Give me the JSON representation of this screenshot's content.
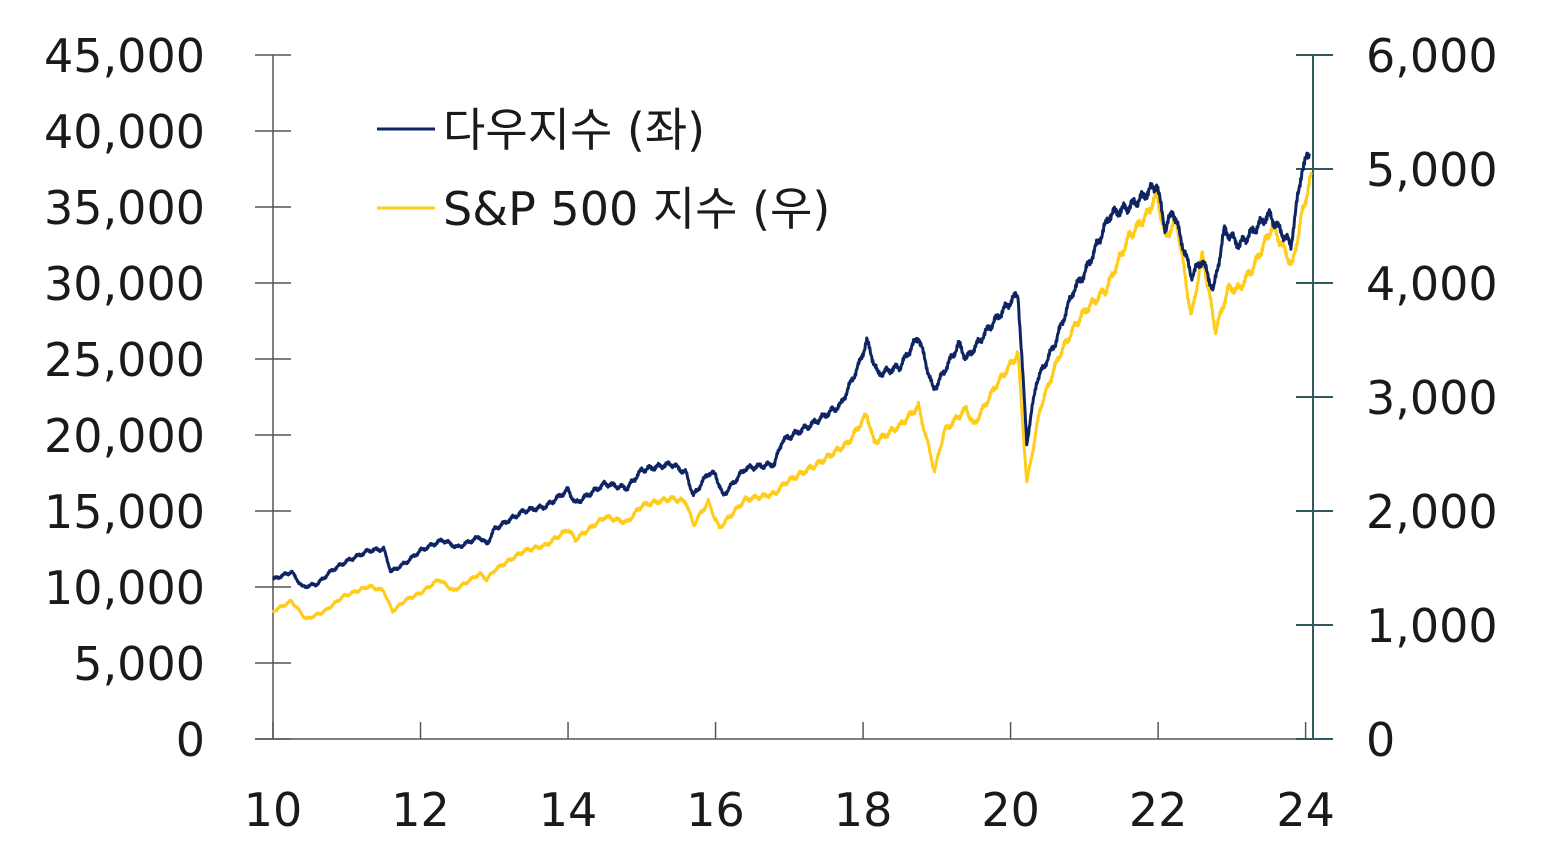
{
  "chart_data": {
    "type": "line",
    "title": "",
    "xlabel": "",
    "x_ticks": [
      "10",
      "12",
      "14",
      "16",
      "18",
      "20",
      "22",
      "24"
    ],
    "x_range": [
      2010,
      2024.1
    ],
    "y_left": {
      "ylim": [
        0,
        45000
      ],
      "ticks": [
        "0",
        "5,000",
        "10,000",
        "15,000",
        "20,000",
        "25,000",
        "30,000",
        "35,000",
        "40,000",
        "45,000"
      ]
    },
    "y_right": {
      "ylim": [
        0,
        6000
      ],
      "ticks": [
        "0",
        "1,000",
        "2,000",
        "3,000",
        "4,000",
        "5,000",
        "6,000"
      ]
    },
    "legend_position": "top-left",
    "grid": false,
    "series": [
      {
        "name": "다우지수 (좌)",
        "axis": "left",
        "color": "#0f2563",
        "points": [
          [
            2010.0,
            10500
          ],
          [
            2010.25,
            11000
          ],
          [
            2010.4,
            10000
          ],
          [
            2010.6,
            10200
          ],
          [
            2010.8,
            11100
          ],
          [
            2011.0,
            11700
          ],
          [
            2011.3,
            12400
          ],
          [
            2011.5,
            12500
          ],
          [
            2011.6,
            11000
          ],
          [
            2011.8,
            11600
          ],
          [
            2012.0,
            12400
          ],
          [
            2012.3,
            13100
          ],
          [
            2012.5,
            12600
          ],
          [
            2012.8,
            13300
          ],
          [
            2012.9,
            12800
          ],
          [
            2013.0,
            13800
          ],
          [
            2013.4,
            15000
          ],
          [
            2013.7,
            15300
          ],
          [
            2014.0,
            16400
          ],
          [
            2014.1,
            15500
          ],
          [
            2014.5,
            16800
          ],
          [
            2014.8,
            16500
          ],
          [
            2015.0,
            17700
          ],
          [
            2015.4,
            18100
          ],
          [
            2015.6,
            17500
          ],
          [
            2015.7,
            16000
          ],
          [
            2015.9,
            17500
          ],
          [
            2016.0,
            17400
          ],
          [
            2016.1,
            16000
          ],
          [
            2016.4,
            17800
          ],
          [
            2016.8,
            18100
          ],
          [
            2016.9,
            19600
          ],
          [
            2017.3,
            20700
          ],
          [
            2017.7,
            22000
          ],
          [
            2017.95,
            24700
          ],
          [
            2018.05,
            26200
          ],
          [
            2018.2,
            24000
          ],
          [
            2018.5,
            24500
          ],
          [
            2018.75,
            26500
          ],
          [
            2018.95,
            23000
          ],
          [
            2019.0,
            23300
          ],
          [
            2019.3,
            26000
          ],
          [
            2019.4,
            25000
          ],
          [
            2019.7,
            27000
          ],
          [
            2019.95,
            28500
          ],
          [
            2020.1,
            29300
          ],
          [
            2020.22,
            19500
          ],
          [
            2020.35,
            23500
          ],
          [
            2020.6,
            26000
          ],
          [
            2020.85,
            29500
          ],
          [
            2021.0,
            30600
          ],
          [
            2021.35,
            34500
          ],
          [
            2021.6,
            35000
          ],
          [
            2021.8,
            35700
          ],
          [
            2021.98,
            36500
          ],
          [
            2022.1,
            33500
          ],
          [
            2022.2,
            34800
          ],
          [
            2022.45,
            30500
          ],
          [
            2022.6,
            31500
          ],
          [
            2022.75,
            29500
          ],
          [
            2022.9,
            33500
          ],
          [
            2023.1,
            32500
          ],
          [
            2023.3,
            33500
          ],
          [
            2023.5,
            34500
          ],
          [
            2023.8,
            32500
          ],
          [
            2023.95,
            37500
          ],
          [
            2024.05,
            38500
          ]
        ]
      },
      {
        "name": "S&P 500 지수 (우)",
        "axis": "right",
        "color": "#ffcc1a",
        "points": [
          [
            2010.0,
            1120
          ],
          [
            2010.25,
            1210
          ],
          [
            2010.45,
            1050
          ],
          [
            2010.7,
            1120
          ],
          [
            2010.95,
            1250
          ],
          [
            2011.3,
            1340
          ],
          [
            2011.5,
            1300
          ],
          [
            2011.62,
            1120
          ],
          [
            2011.8,
            1220
          ],
          [
            2012.0,
            1280
          ],
          [
            2012.25,
            1400
          ],
          [
            2012.45,
            1300
          ],
          [
            2012.8,
            1450
          ],
          [
            2012.9,
            1400
          ],
          [
            2013.0,
            1480
          ],
          [
            2013.4,
            1650
          ],
          [
            2013.7,
            1700
          ],
          [
            2014.0,
            1840
          ],
          [
            2014.1,
            1750
          ],
          [
            2014.5,
            1950
          ],
          [
            2014.8,
            1900
          ],
          [
            2015.0,
            2050
          ],
          [
            2015.4,
            2110
          ],
          [
            2015.6,
            2080
          ],
          [
            2015.7,
            1880
          ],
          [
            2015.9,
            2080
          ],
          [
            2016.05,
            1850
          ],
          [
            2016.4,
            2100
          ],
          [
            2016.8,
            2150
          ],
          [
            2016.95,
            2250
          ],
          [
            2017.4,
            2420
          ],
          [
            2017.8,
            2600
          ],
          [
            2018.05,
            2850
          ],
          [
            2018.15,
            2600
          ],
          [
            2018.5,
            2750
          ],
          [
            2018.75,
            2920
          ],
          [
            2018.97,
            2350
          ],
          [
            2019.1,
            2700
          ],
          [
            2019.4,
            2900
          ],
          [
            2019.5,
            2750
          ],
          [
            2019.8,
            3100
          ],
          [
            2020.1,
            3380
          ],
          [
            2020.22,
            2240
          ],
          [
            2020.4,
            2900
          ],
          [
            2020.65,
            3350
          ],
          [
            2020.85,
            3600
          ],
          [
            2021.0,
            3750
          ],
          [
            2021.3,
            3950
          ],
          [
            2021.6,
            4400
          ],
          [
            2021.85,
            4600
          ],
          [
            2021.98,
            4780
          ],
          [
            2022.1,
            4400
          ],
          [
            2022.25,
            4550
          ],
          [
            2022.45,
            3700
          ],
          [
            2022.6,
            4250
          ],
          [
            2022.78,
            3580
          ],
          [
            2022.95,
            3950
          ],
          [
            2023.1,
            3950
          ],
          [
            2023.3,
            4150
          ],
          [
            2023.55,
            4500
          ],
          [
            2023.82,
            4150
          ],
          [
            2023.95,
            4600
          ],
          [
            2024.08,
            4950
          ]
        ]
      }
    ]
  }
}
